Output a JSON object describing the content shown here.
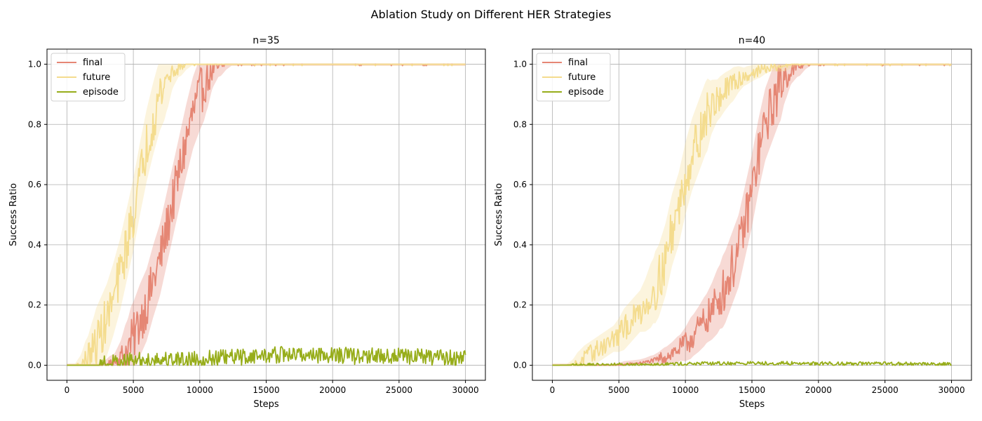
{
  "figure": {
    "suptitle": "Ablation Study on Different HER Strategies"
  },
  "colors": {
    "final": "#e58674",
    "future": "#f4dc8e",
    "episode": "#97ad1a",
    "grid": "#b0b0b0"
  },
  "chart_data": [
    {
      "type": "line",
      "title": "n=35",
      "xlabel": "Steps",
      "ylabel": "Success Ratio",
      "xlim": [
        -1500,
        31500
      ],
      "ylim": [
        -0.05,
        1.05
      ],
      "xticks": [
        0,
        5000,
        10000,
        15000,
        20000,
        25000,
        30000
      ],
      "yticks": [
        0.0,
        0.2,
        0.4,
        0.6,
        0.8,
        1.0
      ],
      "grid": true,
      "legend": "upper-left",
      "series": [
        {
          "name": "final",
          "color": "#e58674",
          "shaded_band": true,
          "x": [
            0,
            2800,
            3500,
            4000,
            4500,
            5000,
            5500,
            6000,
            6500,
            7000,
            7500,
            8000,
            8500,
            9000,
            9500,
            10000,
            10500,
            11000,
            11500,
            12000,
            13000,
            14000,
            30000
          ],
          "y": [
            0.0,
            0.0,
            0.01,
            0.02,
            0.05,
            0.09,
            0.15,
            0.2,
            0.28,
            0.35,
            0.45,
            0.55,
            0.65,
            0.75,
            0.84,
            0.9,
            0.95,
            0.98,
            0.99,
            1.0,
            1.0,
            1.0,
            1.0
          ]
        },
        {
          "name": "future",
          "color": "#f4dc8e",
          "shaded_band": true,
          "x": [
            0,
            1000,
            1500,
            2000,
            2500,
            3000,
            3500,
            4000,
            4500,
            5000,
            5500,
            6000,
            6500,
            7000,
            7500,
            8000,
            8500,
            9000,
            10000,
            30000
          ],
          "y": [
            0.0,
            0.0,
            0.02,
            0.05,
            0.1,
            0.15,
            0.22,
            0.3,
            0.4,
            0.5,
            0.62,
            0.73,
            0.82,
            0.9,
            0.95,
            0.98,
            0.99,
            1.0,
            1.0,
            1.0
          ]
        },
        {
          "name": "episode",
          "color": "#97ad1a",
          "shaded_band": false,
          "x": [
            0,
            2500,
            3000,
            5000,
            8000,
            10000,
            12000,
            14000,
            16000,
            18000,
            20000,
            22000,
            24000,
            26000,
            28000,
            30000
          ],
          "y": [
            0.0,
            0.0,
            0.005,
            0.015,
            0.02,
            0.02,
            0.025,
            0.03,
            0.035,
            0.035,
            0.035,
            0.03,
            0.03,
            0.03,
            0.025,
            0.025
          ]
        }
      ]
    },
    {
      "type": "line",
      "title": "n=40",
      "xlabel": "Steps",
      "ylabel": "Success Ratio",
      "xlim": [
        -1500,
        31500
      ],
      "ylim": [
        -0.05,
        1.05
      ],
      "xticks": [
        0,
        5000,
        10000,
        15000,
        20000,
        25000,
        30000
      ],
      "yticks": [
        0.0,
        0.2,
        0.4,
        0.6,
        0.8,
        1.0
      ],
      "grid": true,
      "legend": "upper-left",
      "series": [
        {
          "name": "final",
          "color": "#e58674",
          "shaded_band": true,
          "x": [
            0,
            5000,
            6000,
            7000,
            8000,
            9000,
            10000,
            11000,
            12000,
            13000,
            14000,
            14500,
            15000,
            15500,
            16000,
            16500,
            17000,
            17500,
            18000,
            19000,
            20000,
            30000
          ],
          "y": [
            0.0,
            0.0,
            0.005,
            0.01,
            0.02,
            0.04,
            0.07,
            0.12,
            0.18,
            0.26,
            0.38,
            0.48,
            0.58,
            0.7,
            0.8,
            0.86,
            0.92,
            0.96,
            0.98,
            1.0,
            1.0,
            1.0
          ]
        },
        {
          "name": "future",
          "color": "#f4dc8e",
          "shaded_band": true,
          "x": [
            0,
            1500,
            2000,
            3000,
            4000,
            5000,
            6000,
            7000,
            8000,
            8500,
            9000,
            9500,
            10000,
            10500,
            11000,
            11500,
            12000,
            13000,
            14000,
            15000,
            16000,
            17000,
            18000,
            20000,
            30000
          ],
          "y": [
            0.0,
            0.0,
            0.01,
            0.04,
            0.07,
            0.1,
            0.15,
            0.2,
            0.28,
            0.35,
            0.45,
            0.52,
            0.62,
            0.7,
            0.76,
            0.82,
            0.86,
            0.91,
            0.95,
            0.97,
            0.985,
            0.99,
            1.0,
            1.0,
            1.0
          ]
        },
        {
          "name": "episode",
          "color": "#97ad1a",
          "shaded_band": false,
          "x": [
            0,
            5000,
            10000,
            15000,
            20000,
            25000,
            30000
          ],
          "y": [
            0.0,
            0.002,
            0.005,
            0.007,
            0.006,
            0.005,
            0.004
          ]
        }
      ]
    }
  ]
}
